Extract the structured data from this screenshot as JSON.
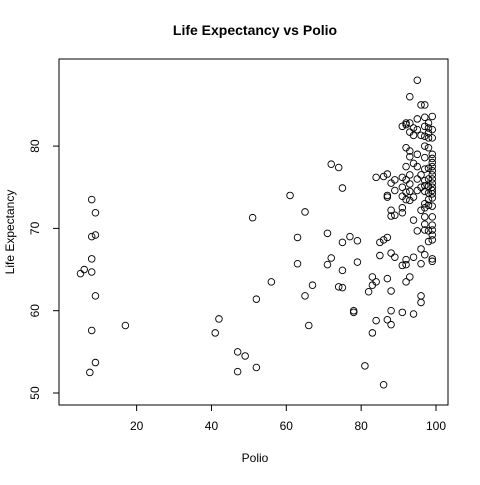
{
  "chart_data": {
    "type": "scatter",
    "title": "Life Expectancy vs  Polio",
    "xlabel": "Polio",
    "ylabel": "Life Expectancy",
    "xlim": [
      3,
      100
    ],
    "ylim": [
      50,
      89
    ],
    "xticks": [
      20,
      40,
      60,
      80,
      100
    ],
    "yticks": [
      50,
      60,
      70,
      80
    ],
    "grid": false,
    "points": [
      [
        5,
        64.5
      ],
      [
        6,
        65
      ],
      [
        7.5,
        52.5
      ],
      [
        8,
        73.5
      ],
      [
        8,
        69
      ],
      [
        8,
        66.3
      ],
      [
        8,
        64.7
      ],
      [
        8,
        57.6
      ],
      [
        9,
        69.2
      ],
      [
        9,
        71.9
      ],
      [
        9,
        61.8
      ],
      [
        9,
        53.7
      ],
      [
        17,
        58.2
      ],
      [
        41,
        57.3
      ],
      [
        42,
        59
      ],
      [
        47,
        55
      ],
      [
        47,
        52.6
      ],
      [
        49,
        54.5
      ],
      [
        51,
        71.3
      ],
      [
        52,
        61.4
      ],
      [
        52,
        53.1
      ],
      [
        56,
        63.5
      ],
      [
        61,
        74
      ],
      [
        63,
        68.9
      ],
      [
        63,
        65.7
      ],
      [
        65,
        72
      ],
      [
        65,
        61.8
      ],
      [
        66,
        58.2
      ],
      [
        67,
        63.1
      ],
      [
        71,
        69.4
      ],
      [
        71,
        65.6
      ],
      [
        72,
        77.8
      ],
      [
        72,
        66.4
      ],
      [
        74,
        77.4
      ],
      [
        74,
        62.9
      ],
      [
        75,
        74.9
      ],
      [
        75,
        68.3
      ],
      [
        75,
        64.9
      ],
      [
        75,
        62.8
      ],
      [
        77,
        69
      ],
      [
        78,
        60
      ],
      [
        78,
        59.8
      ],
      [
        79,
        68.5
      ],
      [
        79,
        65.9
      ],
      [
        81,
        53.3
      ],
      [
        82,
        62.3
      ],
      [
        83,
        64.1
      ],
      [
        83,
        63.1
      ],
      [
        83,
        57.3
      ],
      [
        84,
        76.2
      ],
      [
        84,
        63.5
      ],
      [
        84,
        58.8
      ],
      [
        85,
        66.7
      ],
      [
        85,
        68.3
      ],
      [
        86,
        76.3
      ],
      [
        86,
        68.6
      ],
      [
        86,
        51
      ],
      [
        87,
        76.6
      ],
      [
        87,
        74
      ],
      [
        87,
        73.8
      ],
      [
        87,
        68.9
      ],
      [
        87,
        63.9
      ],
      [
        87,
        58.9
      ],
      [
        88,
        75.5
      ],
      [
        88,
        72.2
      ],
      [
        88,
        71.5
      ],
      [
        88,
        67
      ],
      [
        88,
        62.4
      ],
      [
        88,
        60
      ],
      [
        88,
        58.3
      ],
      [
        89,
        75.9
      ],
      [
        89,
        74.6
      ],
      [
        89,
        71.6
      ],
      [
        89,
        66.5
      ],
      [
        91,
        82.4
      ],
      [
        91,
        76.2
      ],
      [
        91,
        75
      ],
      [
        91,
        73.9
      ],
      [
        91,
        72.5
      ],
      [
        91,
        71.9
      ],
      [
        91,
        65.5
      ],
      [
        91,
        59.8
      ],
      [
        92,
        82.8
      ],
      [
        92,
        82.6
      ],
      [
        92,
        79.8
      ],
      [
        92,
        77.5
      ],
      [
        92,
        75.9
      ],
      [
        92,
        74.4
      ],
      [
        92,
        73.5
      ],
      [
        92,
        66.2
      ],
      [
        92,
        65.6
      ],
      [
        92,
        63.5
      ],
      [
        93,
        86
      ],
      [
        93,
        82.8
      ],
      [
        93,
        81.7
      ],
      [
        93,
        79.4
      ],
      [
        93,
        78.7
      ],
      [
        93,
        76.5
      ],
      [
        93,
        75.4
      ],
      [
        93,
        74.5
      ],
      [
        93,
        73.4
      ],
      [
        93,
        64.1
      ],
      [
        94,
        82.2
      ],
      [
        94,
        81.3
      ],
      [
        94,
        77.9
      ],
      [
        94,
        73.8
      ],
      [
        94,
        71
      ],
      [
        94,
        66.5
      ],
      [
        94,
        59.6
      ],
      [
        95,
        88
      ],
      [
        95,
        83.3
      ],
      [
        95,
        82
      ],
      [
        95,
        79
      ],
      [
        95,
        77.5
      ],
      [
        95,
        76
      ],
      [
        95,
        74.6
      ],
      [
        95,
        69.7
      ],
      [
        96,
        85
      ],
      [
        96,
        81.3
      ],
      [
        96,
        76.5
      ],
      [
        96,
        75
      ],
      [
        96,
        72.2
      ],
      [
        96,
        67.5
      ],
      [
        96,
        65.7
      ],
      [
        96,
        61.8
      ],
      [
        96,
        61
      ],
      [
        97,
        85
      ],
      [
        97,
        83.5
      ],
      [
        97,
        82.4
      ],
      [
        97,
        81.2
      ],
      [
        97,
        80
      ],
      [
        97,
        78.6
      ],
      [
        97,
        77.2
      ],
      [
        97,
        75.8
      ],
      [
        97,
        75.2
      ],
      [
        97,
        74.5
      ],
      [
        97,
        73
      ],
      [
        97,
        72.5
      ],
      [
        97,
        71.4
      ],
      [
        97,
        70.5
      ],
      [
        97,
        69.8
      ],
      [
        97,
        66.8
      ],
      [
        98,
        82.8
      ],
      [
        98,
        82.2
      ],
      [
        98,
        81.6
      ],
      [
        98,
        81
      ],
      [
        98,
        79.8
      ],
      [
        98,
        77.3
      ],
      [
        98,
        76
      ],
      [
        98,
        75.1
      ],
      [
        98,
        74.3
      ],
      [
        98,
        73.5
      ],
      [
        98,
        72.8
      ],
      [
        98,
        69.7
      ],
      [
        98,
        68.4
      ],
      [
        99,
        83.6
      ],
      [
        99,
        82
      ],
      [
        99,
        81
      ],
      [
        99,
        79
      ],
      [
        99,
        78.5
      ],
      [
        99,
        78
      ],
      [
        99,
        77.5
      ],
      [
        99,
        77
      ],
      [
        99,
        76.5
      ],
      [
        99,
        76
      ],
      [
        99,
        75.5
      ],
      [
        99,
        75
      ],
      [
        99,
        74.6
      ],
      [
        99,
        74.2
      ],
      [
        99,
        73.7
      ],
      [
        99,
        72.7
      ],
      [
        99,
        71.4
      ],
      [
        99,
        70.4
      ],
      [
        99,
        69.8
      ],
      [
        99,
        69.2
      ],
      [
        99,
        68.6
      ],
      [
        99,
        66.3
      ],
      [
        99,
        66
      ]
    ]
  }
}
